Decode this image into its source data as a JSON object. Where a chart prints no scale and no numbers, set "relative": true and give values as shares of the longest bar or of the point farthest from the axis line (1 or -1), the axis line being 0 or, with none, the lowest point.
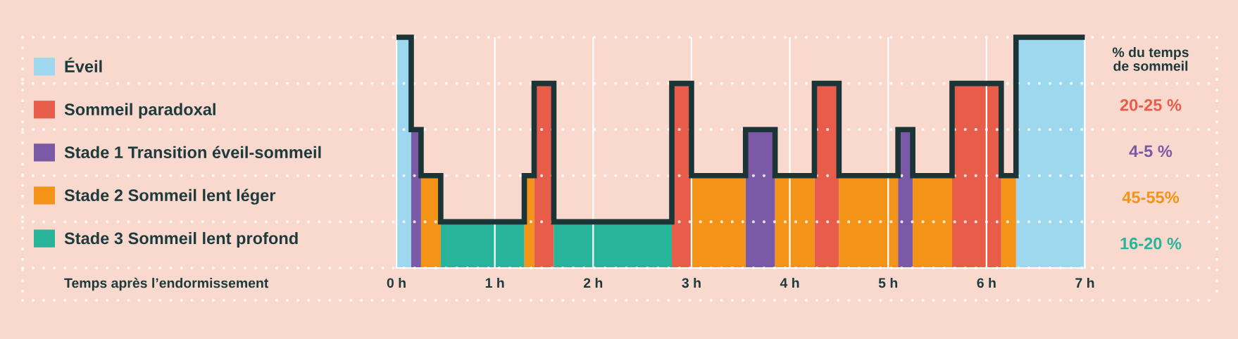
{
  "chart_data": {
    "type": "area",
    "relative": true,
    "series": [
      {
        "name": "Éveil",
        "color": "#9dd8ef",
        "x": [
          0,
          0.15,
          0.15,
          6.3,
          6.3,
          7
        ],
        "values": [
          1,
          1,
          0,
          0,
          1,
          1
        ]
      },
      {
        "name": "Sommeil paradoxal",
        "color": "#e85d4a",
        "x": [
          1.4,
          1.6,
          1.6,
          2.8,
          2.8,
          3.0,
          3.0,
          4.25,
          4.25,
          4.5,
          4.5,
          5.65,
          5.65,
          6.15
        ],
        "values": [
          0.8,
          0.8,
          0,
          0,
          0.8,
          0.8,
          0,
          0,
          0.8,
          0.8,
          0,
          0,
          0.8,
          0.8
        ]
      },
      {
        "name": "Stade 1 Transition éveil-sommeil",
        "color": "#7a5aa6",
        "x": [
          0.15,
          0.25,
          0.25,
          3.55,
          3.55,
          3.85,
          3.85,
          5.1,
          5.1,
          5.25
        ],
        "values": [
          0.6,
          0.6,
          0,
          0,
          0.6,
          0.6,
          0,
          0,
          0.6,
          0.6
        ]
      },
      {
        "name": "Stade 2 Sommeil lent léger",
        "color": "#f39419",
        "x": [
          0.25,
          0.45,
          0.45,
          1.3,
          1.3,
          1.4,
          1.4,
          3.0,
          3.0,
          3.55,
          3.55,
          3.85,
          3.85,
          4.25,
          4.25,
          4.5,
          4.5,
          5.1,
          5.1,
          5.25,
          5.25,
          5.65,
          5.65,
          6.15,
          6.15,
          6.3
        ],
        "values": [
          0.4,
          0.4,
          0,
          0,
          0.4,
          0.4,
          0,
          0,
          0.4,
          0.4,
          0,
          0,
          0.4,
          0.4,
          0,
          0,
          0.4,
          0.4,
          0,
          0,
          0.4,
          0.4,
          0,
          0,
          0.4,
          0.4
        ]
      },
      {
        "name": "Stade 3 Sommeil lent profond",
        "color": "#28b49a",
        "x": [
          0.45,
          1.3,
          1.3,
          1.6,
          1.6,
          2.8
        ],
        "values": [
          0.2,
          0.2,
          0,
          0,
          0.2,
          0.2
        ]
      },
      {
        "type": "step",
        "color": "#1b3536",
        "x": [
          0,
          0.15,
          0.25,
          0.45,
          1.3,
          1.4,
          1.6,
          2.8,
          3.0,
          3.55,
          3.85,
          4.25,
          4.5,
          5.1,
          5.25,
          5.65,
          6.15,
          6.3,
          7
        ],
        "values": [
          1,
          0.6,
          0.4,
          0.2,
          0.4,
          0.8,
          0.2,
          0.8,
          0.4,
          0.6,
          0.4,
          0.8,
          0.4,
          0.6,
          0.4,
          0.8,
          0.4,
          1,
          1
        ]
      }
    ],
    "xlim": [
      0,
      7
    ],
    "xticks": [
      {
        "value": 0,
        "label": "0 h"
      },
      {
        "value": 1,
        "label": "1 h"
      },
      {
        "value": 2,
        "label": "2 h"
      },
      {
        "value": 3,
        "label": "3 h"
      },
      {
        "value": 4,
        "label": "4 h"
      },
      {
        "value": 5,
        "label": "5 h"
      },
      {
        "value": 6,
        "label": "6 h"
      },
      {
        "value": 7,
        "label": "7 h"
      }
    ],
    "annotations": [
      "Temps après l’endormissement",
      "% du temps\nde sommeil",
      "20-25 %",
      "4-5 %",
      "45-55%",
      "16-20 %"
    ],
    "grid": true,
    "legend": "left"
  }
}
